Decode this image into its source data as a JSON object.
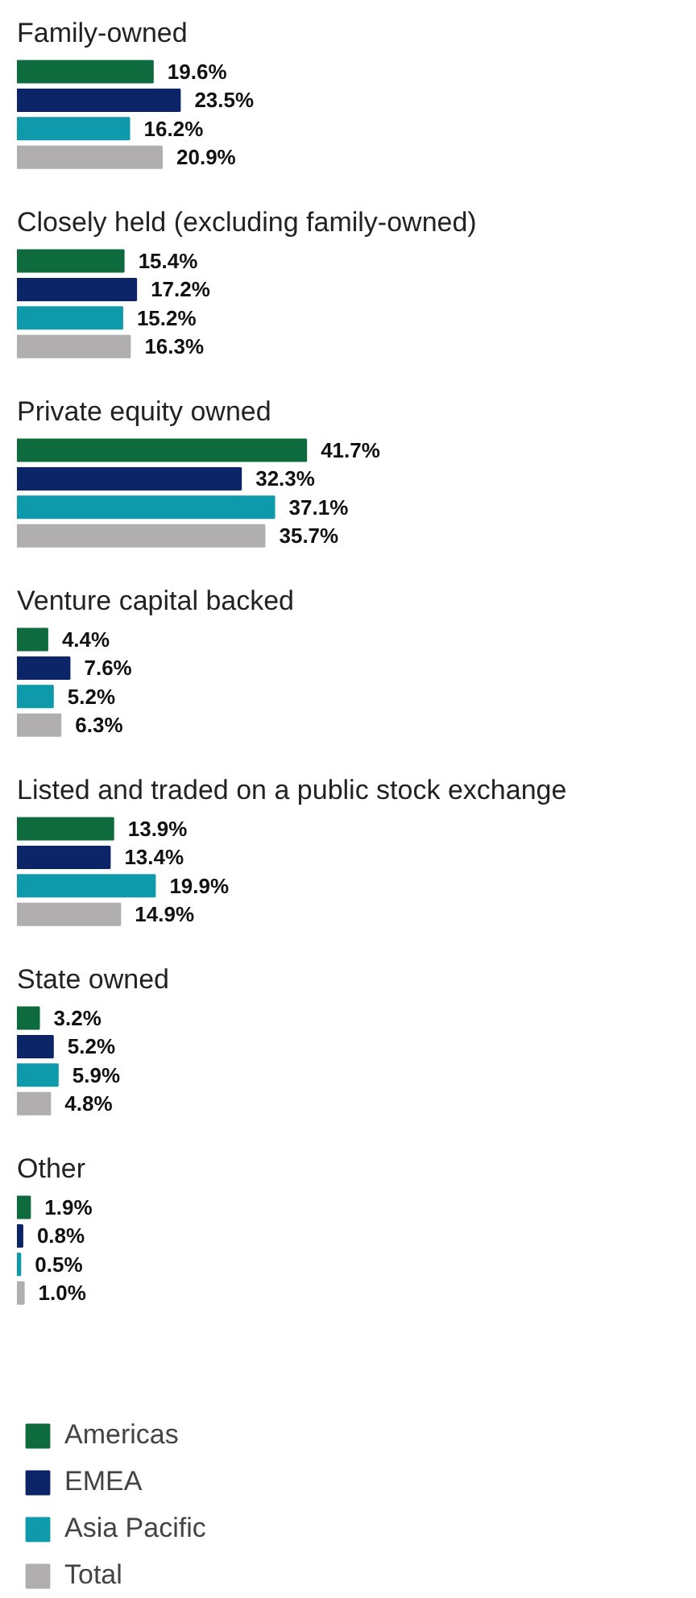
{
  "chart_data": {
    "type": "bar",
    "orientation": "horizontal",
    "categories": [
      "Family-owned",
      "Closely held (excluding family-owned)",
      "Private equity owned",
      "Venture capital backed",
      "Listed and traded on a public stock exchange",
      "State owned",
      "Other"
    ],
    "tick_labels": false,
    "grid": false,
    "legend": "bottom left",
    "series": [
      {
        "name": "Americas",
        "color": "#0e6b3d",
        "values": [
          19.6,
          15.4,
          41.7,
          4.4,
          13.9,
          3.2,
          1.9
        ],
        "value_labels": [
          "19.6%",
          "15.4%",
          "41.7%",
          "4.4%",
          "13.9%",
          "3.2%",
          "1.9%"
        ]
      },
      {
        "name": "EMEA",
        "color": "#0c2468",
        "values": [
          23.5,
          17.2,
          32.3,
          7.6,
          13.4,
          5.2,
          0.8
        ],
        "value_labels": [
          "23.5%",
          "17.2%",
          "32.3%",
          "7.6%",
          "13.4%",
          "5.2%",
          "0.8%"
        ]
      },
      {
        "name": "Asia Pacific",
        "color": "#0f9aab",
        "values": [
          16.2,
          15.2,
          37.1,
          5.2,
          19.9,
          5.9,
          0.5
        ],
        "value_labels": [
          "16.2%",
          "15.2%",
          "37.1%",
          "5.2%",
          "19.9%",
          "5.9%",
          "0.5%"
        ]
      },
      {
        "name": "Total",
        "color": "#b0aeae",
        "values": [
          20.9,
          16.3,
          35.7,
          6.3,
          14.9,
          4.8,
          1.0
        ],
        "value_labels": [
          "20.9%",
          "16.3%",
          "35.7%",
          "6.3%",
          "14.9%",
          "4.8%",
          "1.0%"
        ]
      }
    ]
  }
}
